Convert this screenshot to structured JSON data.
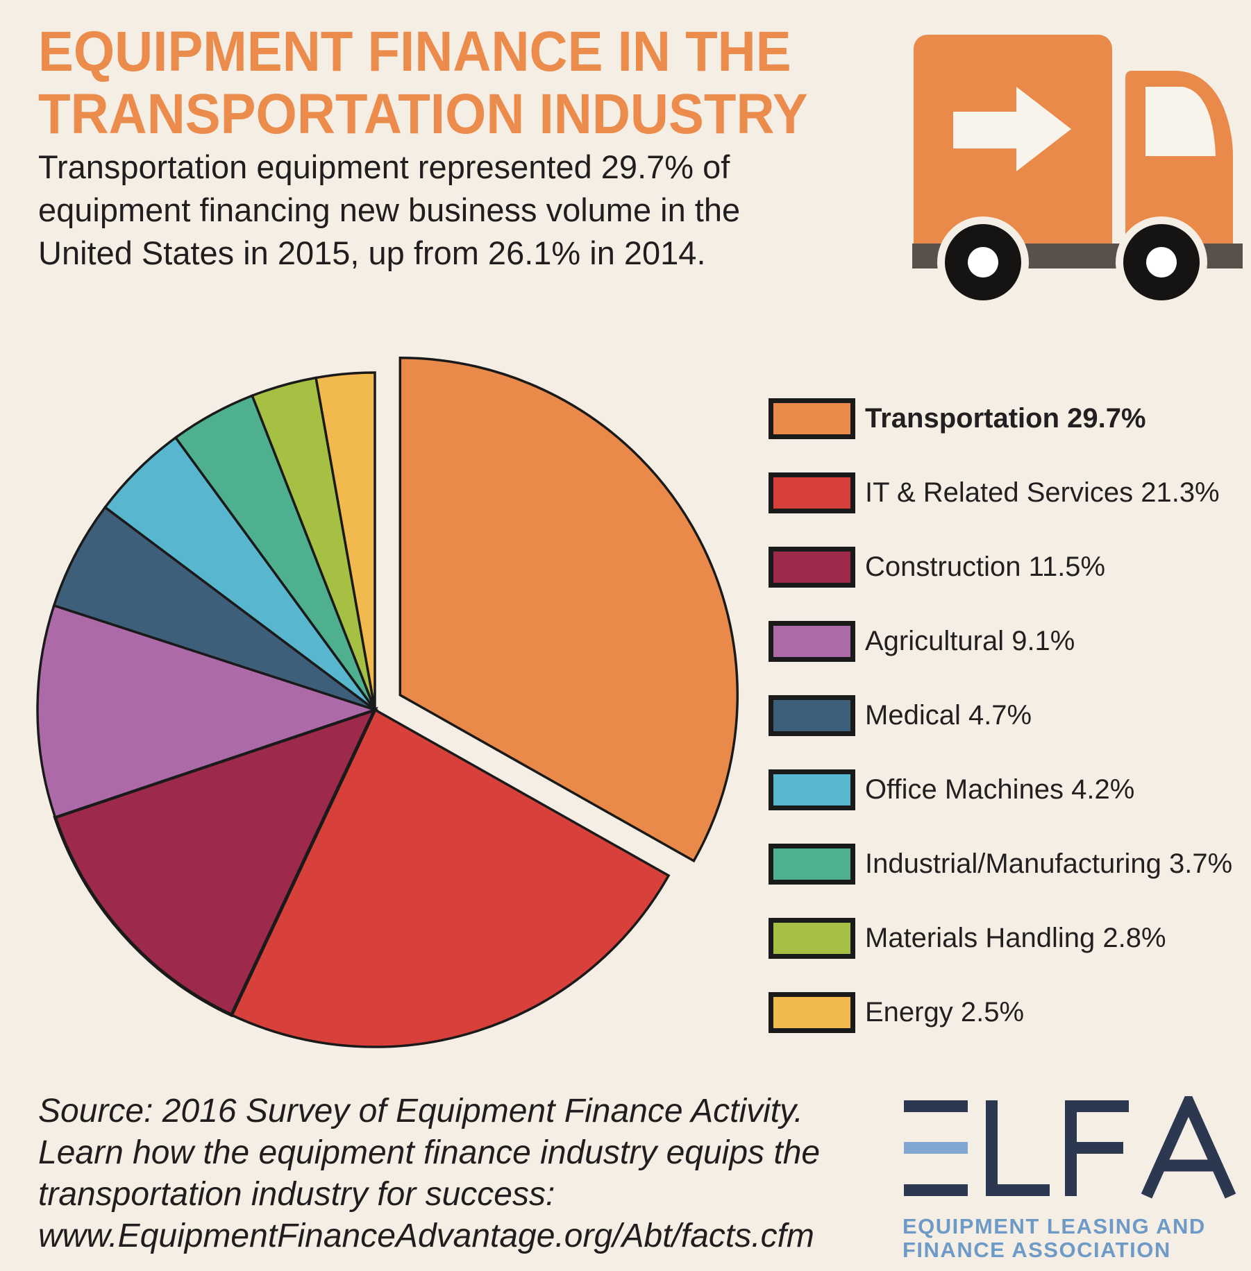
{
  "background": "#F5EEE5",
  "header": {
    "title_line1": "EQUIPMENT FINANCE IN THE",
    "title_line2": "TRANSPORTATION INDUSTRY",
    "title_color": "#EB8C4D",
    "subtitle_line1": "Transportation equipment represented 29.7% of",
    "subtitle_line2": "equipment financing new business volume in the",
    "subtitle_line3": "United States in 2015, up from 26.1% in 2014."
  },
  "chart_data": {
    "type": "pie",
    "legend_position": "right",
    "start_angle_deg": 0,
    "direction": "clockwise",
    "values_are_percent": true,
    "exploded_slice": "Transportation",
    "outline_color": "#1A1A1A",
    "slices": [
      {
        "label": "Transportation",
        "value": 29.7,
        "color": "#E98A4B",
        "exploded": true,
        "legend_bold": true
      },
      {
        "label": "IT & Related Services",
        "value": 21.3,
        "color": "#D8413B"
      },
      {
        "label": "Construction",
        "value": 11.5,
        "color": "#9E2A4B"
      },
      {
        "label": "Agricultural",
        "value": 9.1,
        "color": "#AC6BA8"
      },
      {
        "label": "Medical",
        "value": 4.7,
        "color": "#3D5F7A"
      },
      {
        "label": "Office Machines",
        "value": 4.2,
        "color": "#58B6CF"
      },
      {
        "label": "Industrial/Manufacturing",
        "value": 3.7,
        "color": "#4FB08F"
      },
      {
        "label": "Materials Handling",
        "value": 2.8,
        "color": "#A6C044"
      },
      {
        "label": "Energy",
        "value": 2.5,
        "color": "#F2BA4E"
      }
    ],
    "legend_format": "{label} {value}%"
  },
  "source": {
    "line1": "Source: 2016 Survey of Equipment Finance Activity.",
    "line2": "Learn how the equipment finance industry equips the",
    "line3": "transportation industry for success:",
    "line4": "www.EquipmentFinanceAdvantage.org/Abt/facts.cfm"
  },
  "logo": {
    "acronym": "ELFA",
    "tagline_line1": "EQUIPMENT LEASING AND",
    "tagline_line2": "FINANCE ASSOCIATION",
    "navy": "#2C3750",
    "blue": "#6E9AC8"
  },
  "icons": {
    "truck_icon": {
      "body_color": "#E98A4B",
      "road_color": "#57504B",
      "arrow_color": "#F8F3EB"
    }
  }
}
